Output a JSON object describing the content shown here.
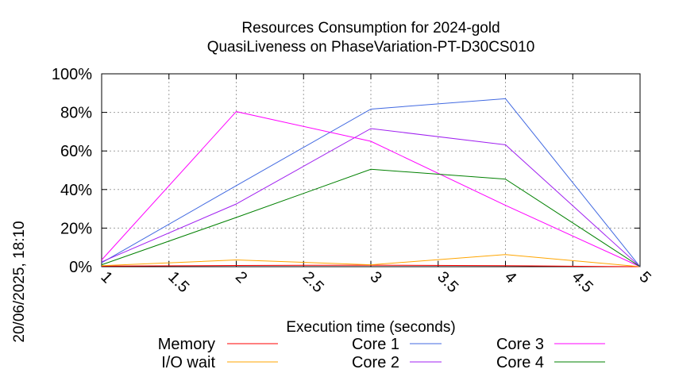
{
  "chart_data": {
    "type": "line",
    "title": "Resources Consumption for 2024-gold",
    "subtitle": "QuasiLiveness on PhaseVariation-PT-D30CS010",
    "xlabel": "Execution time (seconds)",
    "ylabel": "",
    "side_label": "20/06/2025, 18:10",
    "xlim": [
      1,
      5
    ],
    "ylim": [
      0,
      100
    ],
    "x_ticks": [
      "1",
      "1.5",
      "2",
      "2.5",
      "3",
      "3.5",
      "4",
      "4.5",
      "5"
    ],
    "y_ticks": [
      "0%",
      "20%",
      "40%",
      "60%",
      "80%",
      "100%"
    ],
    "grid": true,
    "legend_position": "bottom",
    "x": [
      1,
      2,
      3,
      4,
      5
    ],
    "series": [
      {
        "name": "Memory",
        "color": "#ff0000",
        "values": [
          0.3,
          0.6,
          0.8,
          0.5,
          0
        ]
      },
      {
        "name": "I/O wait",
        "color": "#ffa500",
        "values": [
          0.5,
          3.5,
          1.0,
          6.3,
          0
        ]
      },
      {
        "name": "Core 1",
        "color": "#4169e1",
        "values": [
          2.0,
          42.0,
          81.7,
          87.1,
          0
        ]
      },
      {
        "name": "Core 2",
        "color": "#a020f0",
        "values": [
          2.5,
          32.5,
          71.6,
          63.2,
          0
        ]
      },
      {
        "name": "Core 3",
        "color": "#ff00ff",
        "values": [
          3.5,
          80.4,
          65.0,
          31.8,
          0
        ]
      },
      {
        "name": "Core 4",
        "color": "#008000",
        "values": [
          1.0,
          25.5,
          50.5,
          45.4,
          0
        ]
      }
    ]
  }
}
